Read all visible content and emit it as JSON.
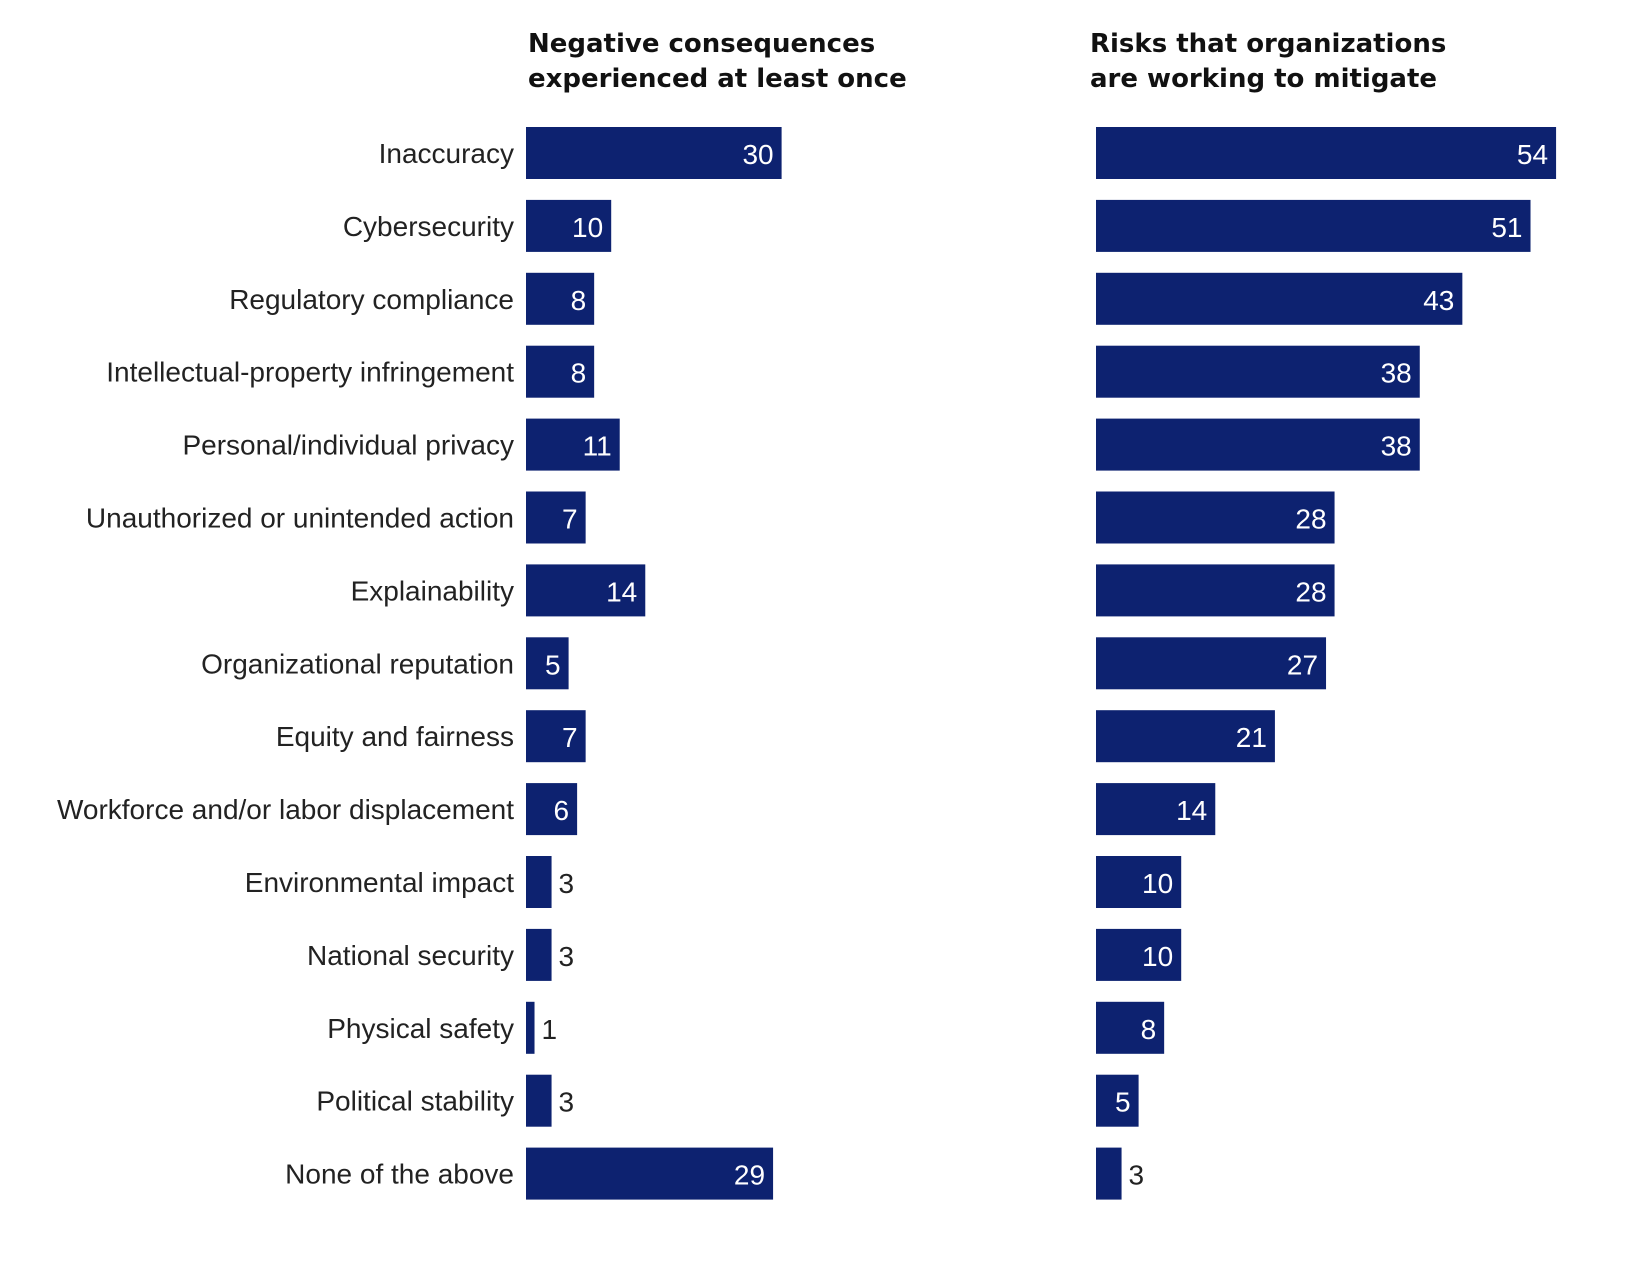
{
  "chart_data": [
    {
      "type": "bar",
      "orientation": "horizontal",
      "title": "Negative consequences experienced at least once",
      "title_lines": [
        "Negative consequences",
        "experienced at least once"
      ],
      "categories": [
        "Inaccuracy",
        "Cybersecurity",
        "Regulatory compliance",
        "Intellectual-property infringement",
        "Personal/individual privacy",
        "Unauthorized or unintended action",
        "Explainability",
        "Organizational reputation",
        "Equity and fairness",
        "Workforce and/or labor displacement",
        "Environmental impact",
        "National security",
        "Physical safety",
        "Political stability",
        "None of the above"
      ],
      "values": [
        30,
        10,
        8,
        8,
        11,
        7,
        14,
        5,
        7,
        6,
        3,
        3,
        1,
        3,
        29
      ],
      "xlim": [
        0,
        54
      ],
      "color": "#0D2270",
      "grid": false
    },
    {
      "type": "bar",
      "orientation": "horizontal",
      "title": "Risks that organizations are working to mitigate",
      "title_lines": [
        "Risks that organizations",
        "are working to mitigate"
      ],
      "categories": [
        "Inaccuracy",
        "Cybersecurity",
        "Regulatory compliance",
        "Intellectual-property infringement",
        "Personal/individual privacy",
        "Unauthorized or unintended action",
        "Explainability",
        "Organizational reputation",
        "Equity and fairness",
        "Workforce and/or labor displacement",
        "Environmental impact",
        "National security",
        "Physical safety",
        "Political stability",
        "None of the above"
      ],
      "values": [
        54,
        51,
        43,
        38,
        38,
        28,
        28,
        27,
        21,
        14,
        10,
        10,
        8,
        5,
        3
      ],
      "xlim": [
        0,
        54
      ],
      "color": "#0D2270",
      "grid": false
    }
  ]
}
